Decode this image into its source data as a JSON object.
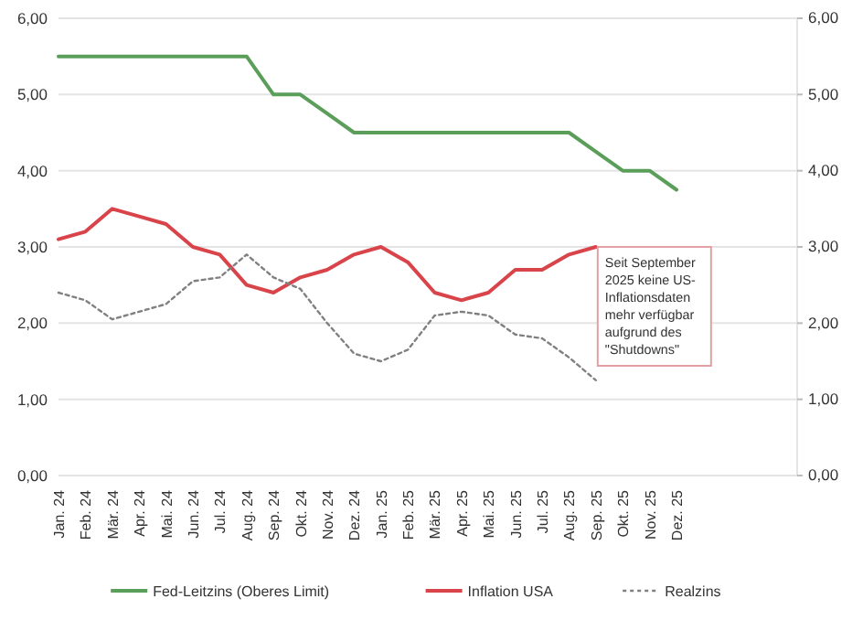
{
  "chart_data": {
    "type": "line",
    "categories": [
      "Jan. 24",
      "Feb. 24",
      "Mär. 24",
      "Apr. 24",
      "Mai. 24",
      "Jun. 24",
      "Jul. 24",
      "Aug. 24",
      "Sep. 24",
      "Okt. 24",
      "Nov. 24",
      "Dez. 24",
      "Jan. 25",
      "Feb. 25",
      "Mär. 25",
      "Apr. 25",
      "Mai. 25",
      "Jun. 25",
      "Jul. 25",
      "Aug. 25",
      "Sep. 25",
      "Okt. 25",
      "Nov. 25",
      "Dez. 25"
    ],
    "series": [
      {
        "name": "Fed-Leitzins (Oberes Limit)",
        "color": "#5a9e5a",
        "line_style": "solid",
        "values": [
          5.5,
          5.5,
          5.5,
          5.5,
          5.5,
          5.5,
          5.5,
          5.5,
          5.0,
          5.0,
          4.75,
          4.5,
          4.5,
          4.5,
          4.5,
          4.5,
          4.5,
          4.5,
          4.5,
          4.5,
          4.25,
          4.0,
          4.0,
          3.75
        ]
      },
      {
        "name": "Inflation USA",
        "color": "#d9444b",
        "line_style": "solid",
        "values": [
          3.1,
          3.2,
          3.5,
          3.4,
          3.3,
          3.0,
          2.9,
          2.5,
          2.4,
          2.6,
          2.7,
          2.9,
          3.0,
          2.8,
          2.4,
          2.3,
          2.4,
          2.7,
          2.7,
          2.9,
          3.0,
          null,
          null,
          null
        ]
      },
      {
        "name": "Realzins",
        "color": "#808080",
        "line_style": "dotted",
        "values": [
          2.4,
          2.3,
          2.05,
          2.15,
          2.25,
          2.55,
          2.6,
          2.9,
          2.6,
          2.45,
          2.0,
          1.6,
          1.5,
          1.65,
          2.1,
          2.15,
          2.1,
          1.85,
          1.8,
          1.55,
          1.25,
          null,
          null,
          null
        ]
      }
    ],
    "ylim": [
      0,
      6
    ],
    "yticks": [
      {
        "value": 0,
        "label": "0,00"
      },
      {
        "value": 1,
        "label": "1,00"
      },
      {
        "value": 2,
        "label": "2,00"
      },
      {
        "value": 3,
        "label": "3,00"
      },
      {
        "value": 4,
        "label": "4,00"
      },
      {
        "value": 5,
        "label": "5,00"
      },
      {
        "value": 6,
        "label": "6,00"
      }
    ],
    "grid": "y",
    "legend": "bottom",
    "marker": "none",
    "annotations": [
      "Seit September 2025 keine US-Inflationsdaten mehr verfügbar aufgrund des \"Shutdowns\""
    ]
  }
}
